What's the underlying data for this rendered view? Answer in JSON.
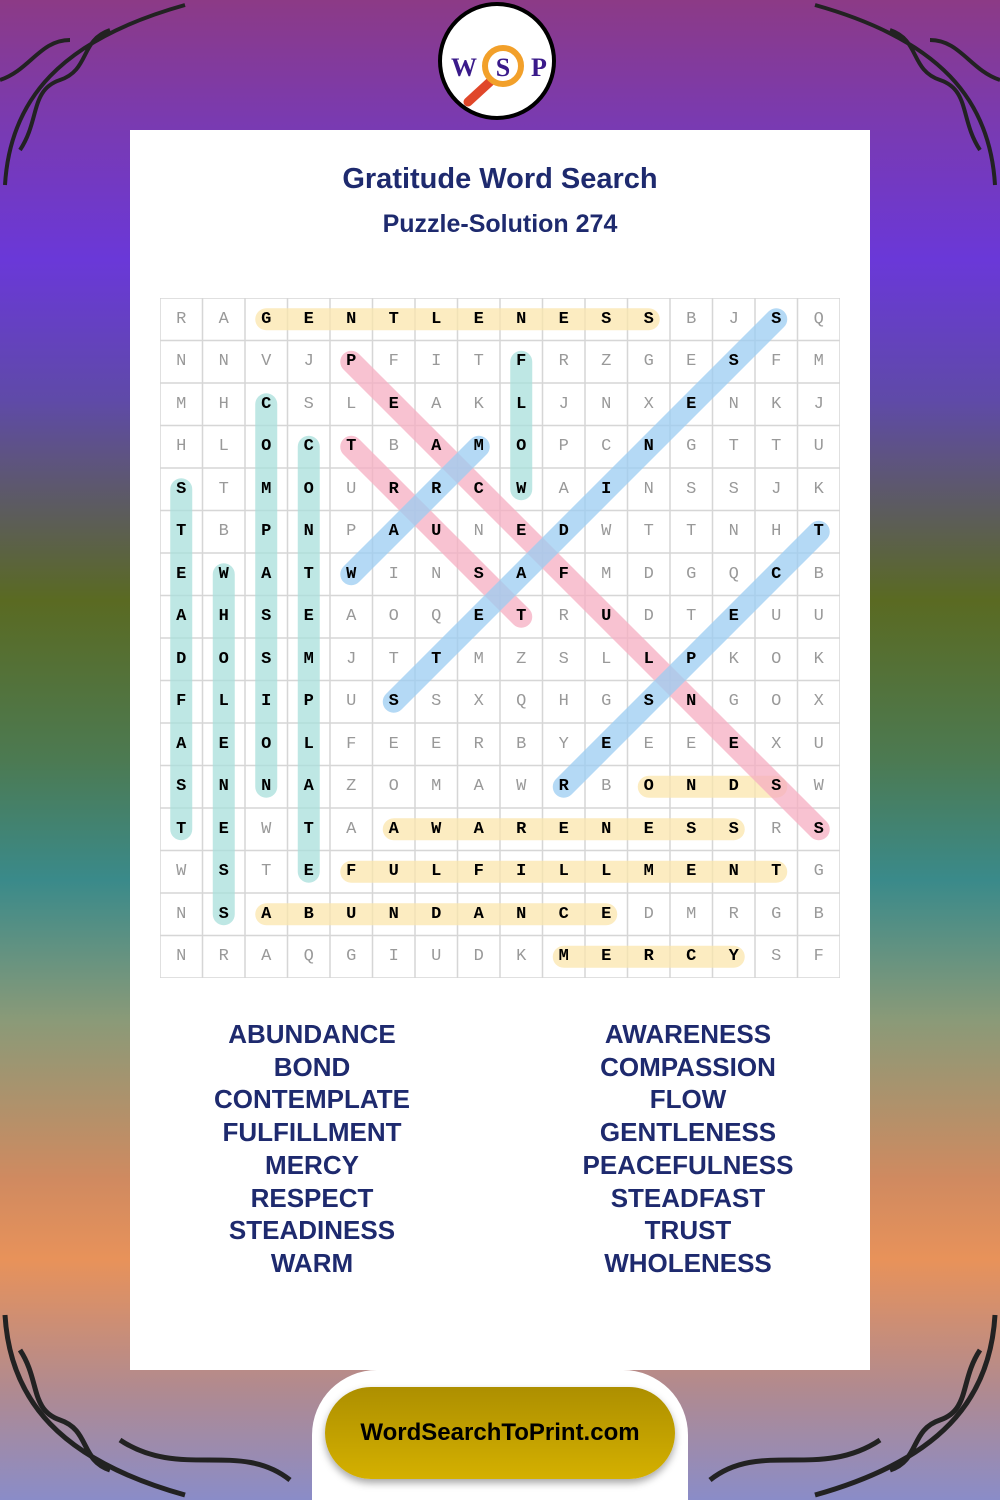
{
  "logo": {
    "letters": [
      "W",
      "S",
      "P"
    ],
    "icon": "magnifying-glass-icon"
  },
  "header": {
    "title": "Gratitude Word Search",
    "subtitle": "Puzzle-Solution 274"
  },
  "grid": {
    "rows": [
      "RAGENTLENESSBJSQ",
      "NNVJPFITFRZGESFM",
      "MHCSLEAKLJNXENKJ",
      "HLOCTBAMOPCNGTTU",
      "STMOURRCWAINSSJK",
      "TBPNPAUNEDWTTNHT",
      "EWATWINSAFMDGQCB",
      "AHSEAOQETRUDTEUU",
      "DOSMJTTMZSLLPKOK",
      "FLIPUSSXQHGSNGOX",
      "AEOLFEERBYEEEEXU",
      "SNNAZOMAWRBONDSW",
      "TEWTAAWARENESSRS",
      "WSTEFULFILLMENTG",
      "NSABUNDANCEDMRGB",
      "NRAQGIUDKMERCYSF"
    ],
    "colors": {
      "yellow": "#fbe6ad",
      "teal": "#a9e0dc",
      "pink": "#f6aec2",
      "blue": "#9ccdf2"
    },
    "highlights": [
      {
        "word": "GENTLENESS",
        "from": [
          0,
          2
        ],
        "to": [
          0,
          11
        ],
        "color": "yellow"
      },
      {
        "word": "BOND",
        "from": [
          11,
          11
        ],
        "to": [
          11,
          14
        ],
        "color": "yellow"
      },
      {
        "word": "AWARENESS",
        "from": [
          12,
          5
        ],
        "to": [
          12,
          13
        ],
        "color": "yellow"
      },
      {
        "word": "FULFILLMENT",
        "from": [
          13,
          4
        ],
        "to": [
          13,
          14
        ],
        "color": "yellow"
      },
      {
        "word": "ABUNDANCE",
        "from": [
          14,
          2
        ],
        "to": [
          14,
          10
        ],
        "color": "yellow"
      },
      {
        "word": "MERCY",
        "from": [
          15,
          9
        ],
        "to": [
          15,
          13
        ],
        "color": "yellow"
      },
      {
        "word": "COMPASSION",
        "from": [
          2,
          2
        ],
        "to": [
          11,
          2
        ],
        "color": "teal"
      },
      {
        "word": "CONTEMPLATE",
        "from": [
          3,
          3
        ],
        "to": [
          13,
          3
        ],
        "color": "teal"
      },
      {
        "word": "FLOW",
        "from": [
          1,
          8
        ],
        "to": [
          4,
          8
        ],
        "color": "teal"
      },
      {
        "word": "STEADFAST",
        "from": [
          4,
          0
        ],
        "to": [
          12,
          0
        ],
        "color": "teal"
      },
      {
        "word": "WHOLENESS",
        "from": [
          6,
          1
        ],
        "to": [
          14,
          1
        ],
        "color": "teal"
      },
      {
        "word": "PEACEFULNESS",
        "from": [
          1,
          4
        ],
        "to": [
          12,
          15
        ],
        "color": "pink"
      },
      {
        "word": "TRUST",
        "from": [
          3,
          4
        ],
        "to": [
          7,
          8
        ],
        "color": "pink"
      },
      {
        "word": "WARM",
        "from": [
          6,
          4
        ],
        "to": [
          3,
          7
        ],
        "color": "blue"
      },
      {
        "word": "STEADINESS",
        "from": [
          9,
          5
        ],
        "to": [
          0,
          14
        ],
        "color": "blue"
      },
      {
        "word": "RESPECT",
        "from": [
          11,
          9
        ],
        "to": [
          5,
          15
        ],
        "color": "blue"
      }
    ]
  },
  "word_list": {
    "left": [
      "ABUNDANCE",
      "BOND",
      "CONTEMPLATE",
      "FULFILLMENT",
      "MERCY",
      "RESPECT",
      "STEADINESS",
      "WARM"
    ],
    "right": [
      "AWARENESS",
      "COMPASSION",
      "FLOW",
      "GENTLENESS",
      "PEACEFULNESS",
      "STEADFAST",
      "TRUST",
      "WHOLENESS"
    ]
  },
  "footer": {
    "site": "WordSearchToPrint.com"
  }
}
